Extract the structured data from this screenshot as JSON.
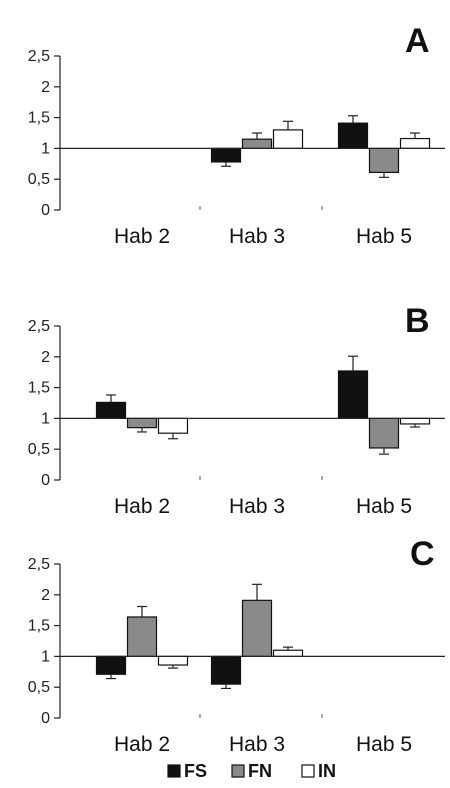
{
  "chart_data": [
    {
      "type": "bar",
      "panel_label": "A",
      "categories": [
        "Hab 2",
        "Hab 3",
        "Hab 5"
      ],
      "baseline": 1,
      "ylim": [
        0,
        2.5
      ],
      "yticks": [
        "0",
        "0,5",
        "1",
        "1,5",
        "2",
        "2,5"
      ],
      "series": [
        {
          "name": "FS",
          "values": [
            null,
            0.78,
            1.41
          ],
          "errors": [
            null,
            0.07,
            0.12
          ]
        },
        {
          "name": "FN",
          "values": [
            null,
            1.15,
            0.61
          ],
          "errors": [
            null,
            0.1,
            0.08
          ]
        },
        {
          "name": "IN",
          "values": [
            null,
            1.3,
            1.16
          ],
          "errors": [
            null,
            0.14,
            0.09
          ]
        }
      ]
    },
    {
      "type": "bar",
      "panel_label": "B",
      "categories": [
        "Hab 2",
        "Hab 3",
        "Hab 5"
      ],
      "baseline": 1,
      "ylim": [
        0,
        2.5
      ],
      "yticks": [
        "0",
        "0,5",
        "1",
        "1,5",
        "2",
        "2,5"
      ],
      "series": [
        {
          "name": "FS",
          "values": [
            1.26,
            null,
            1.77
          ],
          "errors": [
            0.12,
            null,
            0.24
          ]
        },
        {
          "name": "FN",
          "values": [
            0.85,
            null,
            0.52
          ],
          "errors": [
            0.07,
            null,
            0.1
          ]
        },
        {
          "name": "IN",
          "values": [
            0.76,
            null,
            0.91
          ],
          "errors": [
            0.09,
            null,
            0.05
          ]
        }
      ]
    },
    {
      "type": "bar",
      "panel_label": "C",
      "categories": [
        "Hab 2",
        "Hab 3",
        "Hab 5"
      ],
      "baseline": 1,
      "ylim": [
        0,
        2.5
      ],
      "yticks": [
        "0",
        "0,5",
        "1",
        "1,5",
        "2",
        "2,5"
      ],
      "series": [
        {
          "name": "FS",
          "values": [
            0.71,
            0.55,
            null
          ],
          "errors": [
            0.07,
            0.07,
            null
          ]
        },
        {
          "name": "FN",
          "values": [
            1.64,
            1.91,
            null
          ],
          "errors": [
            0.17,
            0.26,
            null
          ]
        },
        {
          "name": "IN",
          "values": [
            0.86,
            1.1,
            null
          ],
          "errors": [
            0.05,
            0.05,
            null
          ]
        }
      ]
    }
  ],
  "legend": {
    "placement": "bottom-center",
    "items": [
      {
        "name": "FS",
        "color": "#111111"
      },
      {
        "name": "FN",
        "color": "#8a8a8a"
      },
      {
        "name": "IN",
        "color": "#ffffff"
      }
    ]
  }
}
